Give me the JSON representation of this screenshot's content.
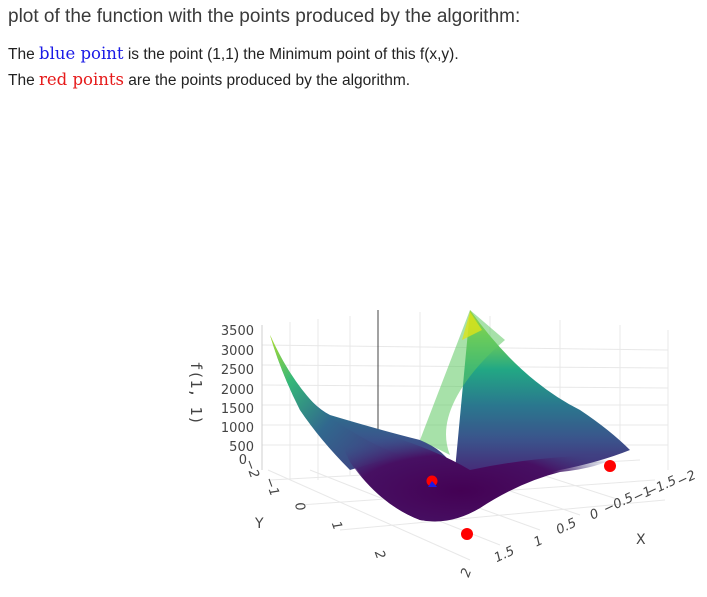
{
  "heading": "plot of the function with the points produced by the algorithm:",
  "desc1": {
    "prefix": "The ",
    "highlight": "blue point",
    "suffix": " is the point (1,1) the Minimum point of this f(x,y)."
  },
  "desc2": {
    "prefix": "The ",
    "highlight": "red points",
    "suffix": " are the points produced by the algorithm."
  },
  "plot": {
    "z_axis_title": "f(1, 1)",
    "y_axis_title": "Y",
    "x_axis_title": "X",
    "z_ticks": [
      "3500",
      "3000",
      "2500",
      "2000",
      "1500",
      "1000",
      "500",
      "0"
    ],
    "y_ticks": [
      "−2",
      "−1",
      "0",
      "1",
      "2"
    ],
    "x_ticks": [
      "−2",
      "−1.5",
      "−1",
      "−0.5",
      "0",
      "0.5",
      "1",
      "1.5",
      "2"
    ],
    "colors": {
      "surface_high": "#dde318",
      "surface_mid": "#21918c",
      "surface_low": "#440154",
      "min_point": "#1a1ae6",
      "algo_point": "#ff0000"
    }
  }
}
